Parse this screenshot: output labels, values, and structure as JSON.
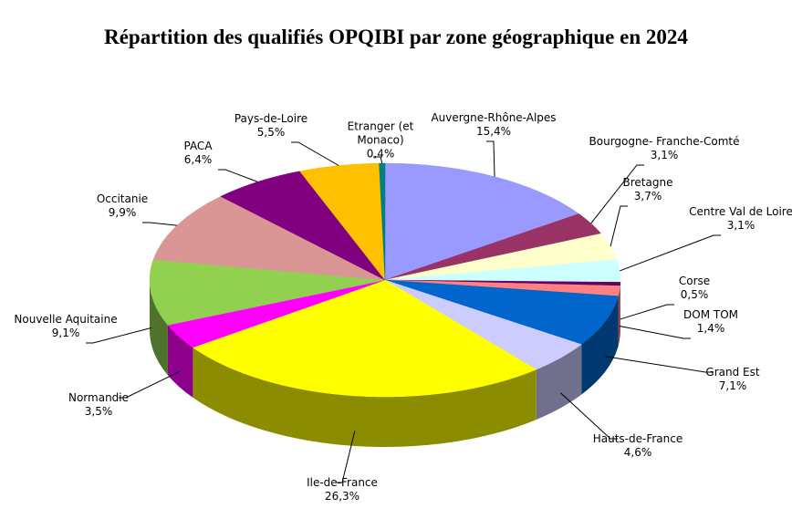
{
  "chart_data": {
    "type": "pie3d",
    "title": "Répartition des qualifiés OPQIBI par zone géographique en 2024",
    "categories": [
      "Auvergne-Rhône-Alpes",
      "Bourgogne- Franche-Comté",
      "Bretagne",
      "Centre Val de Loire",
      "Corse",
      "DOM TOM",
      "Grand Est",
      "Hauts-de-France",
      "Ile-de-France",
      "Normandie",
      "Nouvelle Aquitaine",
      "Occitanie",
      "PACA",
      "Pays-de-Loire",
      "Etranger (et Monaco)"
    ],
    "values": [
      15.4,
      3.1,
      3.7,
      3.1,
      0.5,
      1.4,
      7.1,
      4.6,
      26.3,
      3.5,
      9.1,
      9.9,
      6.4,
      5.5,
      0.4
    ],
    "value_labels": [
      "15,4%",
      "3,1%",
      "3,7%",
      "3,1%",
      "0,5%",
      "1,4%",
      "7,1%",
      "4,6%",
      "26,3%",
      "3,5%",
      "9,1%",
      "9,9%",
      "6,4%",
      "5,5%",
      "0,4%"
    ],
    "colors": [
      "#9999ff",
      "#993366",
      "#ffffcc",
      "#ccffff",
      "#660066",
      "#ff8080",
      "#0066cc",
      "#ccccff",
      "#ffff00",
      "#ff00ff",
      "#92d050",
      "#d99694",
      "#800080",
      "#ffc000",
      "#008080"
    ]
  }
}
